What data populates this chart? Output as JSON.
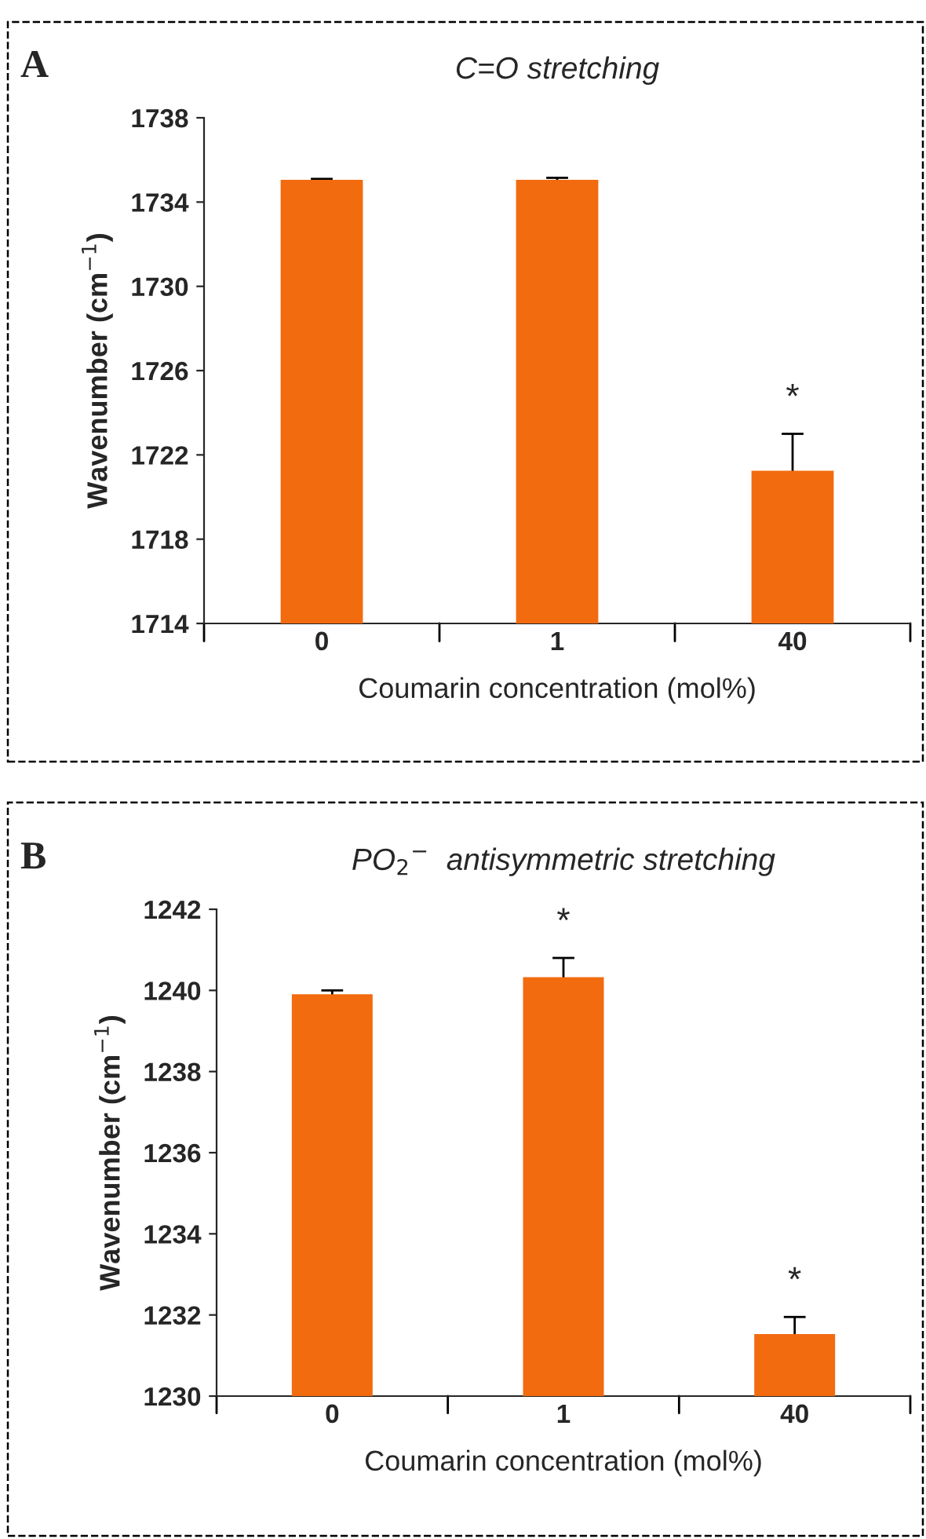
{
  "chart_data": [
    {
      "type": "bar",
      "title": "C=O stretching",
      "xlabel": "Coumarin concentration (mol%)",
      "ylabel": "Wavenumber (cm$^{−1}$)",
      "categories": [
        "0",
        "1",
        "40"
      ],
      "values": [
        1735.0,
        1735.0,
        1721.2
      ],
      "color": "#f26b0f",
      "errors": [
        0.1,
        0.15,
        1.8
      ],
      "ylim": [
        1714,
        1738
      ],
      "yticks": [
        1714,
        1718,
        1722,
        1726,
        1730,
        1734,
        1738
      ],
      "grid": false,
      "legend": false,
      "annotations": [
        "A",
        {
          "text": "*",
          "x": "40",
          "y": 1721.2
        }
      ]
    },
    {
      "type": "bar",
      "title": "PO$_{2}$$^{−}$  antisymmetric stretching",
      "xlabel": "Coumarin concentration (mol%)",
      "ylabel": "Wavenumber (cm$^{−1}$)",
      "categories": [
        "0",
        "1",
        "40"
      ],
      "values": [
        1239.88,
        1240.3,
        1231.5
      ],
      "color": "#f26b0f",
      "errors": [
        0.12,
        0.5,
        0.45
      ],
      "ylim": [
        1230,
        1242
      ],
      "yticks": [
        1230,
        1232,
        1234,
        1236,
        1238,
        1240,
        1242
      ],
      "grid": false,
      "legend": false,
      "annotations": [
        "B",
        {
          "text": "*",
          "x": "1",
          "y": 1240.3
        },
        {
          "text": "*",
          "x": "40",
          "y": 1231.5
        }
      ]
    }
  ]
}
